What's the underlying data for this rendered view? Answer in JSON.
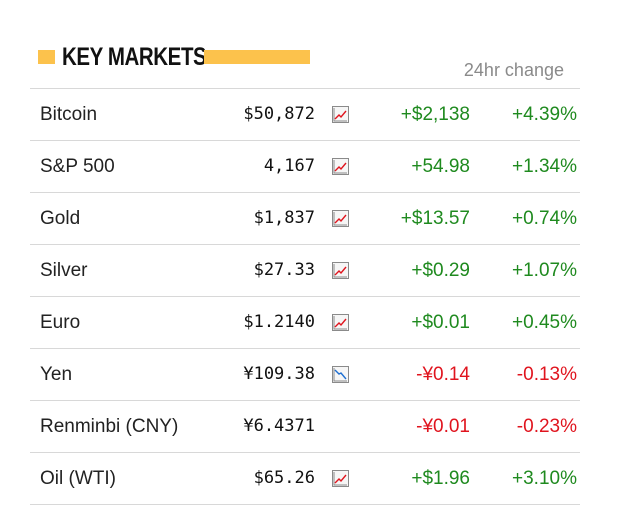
{
  "widget": {
    "title": "KEY MARKETS",
    "change_header": "24hr change",
    "colors": {
      "accent": "#fcc24c",
      "up": "#1f8a1f",
      "down": "#e0141e"
    }
  },
  "markets": [
    {
      "name": "Bitcoin",
      "price": "$50,872",
      "icon": "chart-up-icon",
      "change": "+$2,138",
      "pct": "+4.39%",
      "dir": "up"
    },
    {
      "name": "S&P 500",
      "price": "4,167",
      "icon": "chart-up-icon",
      "change": "+54.98",
      "pct": "+1.34%",
      "dir": "up"
    },
    {
      "name": "Gold",
      "price": "$1,837",
      "icon": "chart-up-icon",
      "change": "+$13.57",
      "pct": "+0.74%",
      "dir": "up"
    },
    {
      "name": "Silver",
      "price": "$27.33",
      "icon": "chart-up-icon",
      "change": "+$0.29",
      "pct": "+1.07%",
      "dir": "up"
    },
    {
      "name": "Euro",
      "price": "$1.2140",
      "icon": "chart-up-icon",
      "change": "+$0.01",
      "pct": "+0.45%",
      "dir": "up"
    },
    {
      "name": "Yen",
      "price": "¥109.38",
      "icon": "chart-down-icon",
      "change": "-¥0.14",
      "pct": "-0.13%",
      "dir": "down"
    },
    {
      "name": "Renminbi (CNY)",
      "price": "¥6.4371",
      "icon": "",
      "change": "-¥0.01",
      "pct": "-0.23%",
      "dir": "down"
    },
    {
      "name": "Oil (WTI)",
      "price": "$65.26",
      "icon": "chart-up-icon",
      "change": "+$1.96",
      "pct": "+3.10%",
      "dir": "up"
    }
  ]
}
